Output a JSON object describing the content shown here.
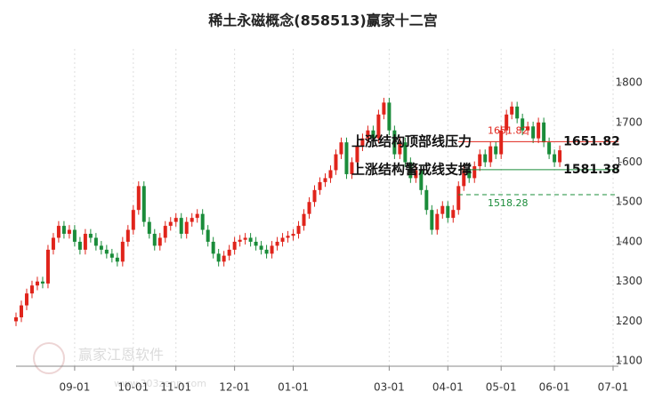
{
  "chart_data": {
    "type": "candlestick",
    "title": "稀土永磁概念(858513)赢家十二宫",
    "xlim": [
      0,
      113
    ],
    "xticks": [
      {
        "value": 11,
        "label": "09-01"
      },
      {
        "value": 22,
        "label": "10-01"
      },
      {
        "value": 30,
        "label": "11-01"
      },
      {
        "value": 41,
        "label": "12-01"
      },
      {
        "value": 52,
        "label": "01-01"
      },
      {
        "value": 70,
        "label": "03-01"
      },
      {
        "value": 81,
        "label": "04-01"
      },
      {
        "value": 91,
        "label": "05-01"
      },
      {
        "value": 101,
        "label": "06-01"
      },
      {
        "value": 112,
        "label": "07-01"
      }
    ],
    "ylim": [
      1087,
      1885
    ],
    "yticks": [
      1100,
      1200,
      1300,
      1400,
      1500,
      1600,
      1700,
      1800
    ],
    "up_color": "#e0241b",
    "down_color": "#1a8c3a",
    "grid": true,
    "open": [
      1200,
      1210,
      1240,
      1270,
      1290,
      1300,
      1295,
      1380,
      1410,
      1440,
      1420,
      1430,
      1400,
      1380,
      1420,
      1410,
      1390,
      1380,
      1370,
      1360,
      1350,
      1400,
      1430,
      1480,
      1540,
      1450,
      1420,
      1390,
      1410,
      1440,
      1450,
      1460,
      1420,
      1450,
      1460,
      1470,
      1430,
      1400,
      1370,
      1350,
      1365,
      1380,
      1400,
      1405,
      1410,
      1400,
      1390,
      1380,
      1370,
      1390,
      1400,
      1410,
      1415,
      1420,
      1440,
      1470,
      1500,
      1530,
      1550,
      1560,
      1580,
      1620,
      1650,
      1570,
      1600,
      1640,
      1660,
      1680,
      1660,
      1720,
      1750,
      1680,
      1620,
      1650,
      1600,
      1560,
      1580,
      1530,
      1480,
      1430,
      1470,
      1490,
      1460,
      1480,
      1540,
      1580,
      1560,
      1590,
      1620,
      1600,
      1640,
      1620,
      1680,
      1720,
      1740,
      1710,
      1680,
      1690,
      1660,
      1700,
      1650,
      1620,
      1600
    ],
    "high": [
      1222,
      1252,
      1282,
      1302,
      1312,
      1312,
      1392,
      1422,
      1452,
      1452,
      1442,
      1442,
      1412,
      1432,
      1432,
      1422,
      1402,
      1392,
      1382,
      1372,
      1412,
      1442,
      1492,
      1552,
      1552,
      1462,
      1432,
      1422,
      1452,
      1462,
      1472,
      1472,
      1462,
      1472,
      1482,
      1482,
      1442,
      1412,
      1382,
      1377,
      1392,
      1412,
      1417,
      1422,
      1422,
      1412,
      1402,
      1392,
      1402,
      1412,
      1422,
      1427,
      1432,
      1452,
      1482,
      1512,
      1542,
      1562,
      1572,
      1592,
      1632,
      1662,
      1662,
      1612,
      1652,
      1672,
      1692,
      1692,
      1732,
      1762,
      1762,
      1692,
      1662,
      1662,
      1612,
      1592,
      1592,
      1542,
      1492,
      1482,
      1502,
      1502,
      1492,
      1552,
      1592,
      1592,
      1602,
      1632,
      1632,
      1652,
      1652,
      1692,
      1732,
      1752,
      1752,
      1722,
      1702,
      1702,
      1712,
      1712,
      1662,
      1632,
      1642
    ],
    "low": [
      1188,
      1198,
      1228,
      1258,
      1278,
      1283,
      1283,
      1368,
      1398,
      1408,
      1408,
      1388,
      1368,
      1368,
      1398,
      1378,
      1368,
      1358,
      1348,
      1338,
      1338,
      1388,
      1418,
      1468,
      1438,
      1408,
      1378,
      1378,
      1398,
      1428,
      1438,
      1408,
      1408,
      1438,
      1448,
      1418,
      1388,
      1358,
      1338,
      1338,
      1353,
      1368,
      1388,
      1393,
      1388,
      1378,
      1368,
      1358,
      1358,
      1378,
      1388,
      1398,
      1403,
      1408,
      1428,
      1458,
      1488,
      1518,
      1538,
      1548,
      1568,
      1608,
      1558,
      1558,
      1588,
      1628,
      1648,
      1648,
      1648,
      1708,
      1668,
      1608,
      1608,
      1588,
      1548,
      1548,
      1518,
      1468,
      1418,
      1418,
      1458,
      1448,
      1448,
      1468,
      1528,
      1548,
      1548,
      1578,
      1588,
      1588,
      1608,
      1608,
      1668,
      1708,
      1698,
      1668,
      1668,
      1648,
      1648,
      1638,
      1608,
      1588,
      1588
    ],
    "close": [
      1210,
      1240,
      1270,
      1290,
      1300,
      1295,
      1380,
      1410,
      1440,
      1420,
      1430,
      1400,
      1380,
      1420,
      1410,
      1390,
      1380,
      1370,
      1360,
      1350,
      1400,
      1430,
      1480,
      1540,
      1450,
      1420,
      1390,
      1410,
      1440,
      1450,
      1460,
      1420,
      1450,
      1460,
      1470,
      1430,
      1400,
      1370,
      1350,
      1365,
      1380,
      1400,
      1405,
      1410,
      1400,
      1390,
      1380,
      1370,
      1390,
      1400,
      1410,
      1415,
      1420,
      1440,
      1470,
      1500,
      1530,
      1550,
      1560,
      1580,
      1620,
      1650,
      1570,
      1600,
      1640,
      1660,
      1680,
      1660,
      1720,
      1750,
      1680,
      1620,
      1650,
      1600,
      1560,
      1580,
      1530,
      1480,
      1430,
      1470,
      1490,
      1460,
      1480,
      1540,
      1580,
      1560,
      1590,
      1620,
      1600,
      1640,
      1620,
      1680,
      1720,
      1740,
      1710,
      1680,
      1690,
      1660,
      1700,
      1650,
      1620,
      1600,
      1630
    ],
    "levels": [
      {
        "value": 1651.82,
        "text": "上涨结构顶部线压力",
        "color": "#e0241b",
        "dashed": false
      },
      {
        "value": 1581.38,
        "text": "上涨结构警戒线支撑",
        "color": "#1a8c3a",
        "dashed": false
      },
      {
        "value": 1518.28,
        "color": "#1a8c3a",
        "dashed": true
      }
    ],
    "watermark": {
      "brand": "赢家江恩软件",
      "url": "www.303zenn.com"
    }
  }
}
